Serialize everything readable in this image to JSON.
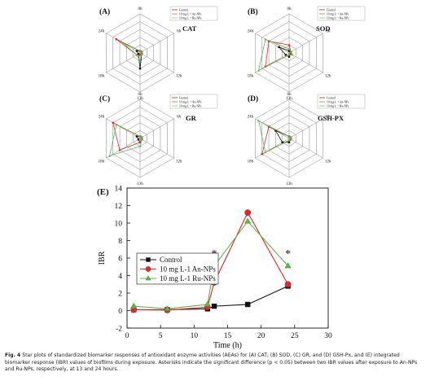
{
  "caption": {
    "lead": "Fig. 4",
    "text": "Star plots of standardized biomarker responses of antioxidant enzyme activities (AEAs) for (A) CAT, (B) SOD, (C) GR, and (D) GSH-Px, and (E) integrated biomarker response (IBR) values of biofilms during exposure. Asterisks indicate the significant difference (p < 0.05) between two IBR values after exposure to An-NPs and Ru-NPs, respectively, at 13 and 24 hours."
  },
  "colors": {
    "control": "#111111",
    "an": "#e8262a",
    "ru": "#58b947"
  },
  "radar_axes": [
    "0h",
    "6h",
    "12h",
    "13h",
    "18h",
    "24h"
  ],
  "radar_legend": [
    "Control",
    "10 mg L⁻¹ An-NPs",
    "10 mg L⁻¹ Ru-NPs"
  ],
  "chart_data": [
    {
      "type": "radar",
      "panel_label": "(A)",
      "title": "CAT",
      "axes": [
        "0h",
        "6h",
        "12h",
        "13h",
        "18h",
        "24h"
      ],
      "series": [
        {
          "name": "Control",
          "values": [
            0.05,
            0.05,
            0.05,
            0.4,
            0.05,
            0.1
          ]
        },
        {
          "name": "10 mg L⁻¹ An-NPs",
          "values": [
            0.05,
            0.05,
            0.05,
            0.05,
            0.1,
            0.7
          ]
        },
        {
          "name": "10 mg L⁻¹ Ru-NPs",
          "values": [
            0.05,
            0.05,
            0.05,
            0.2,
            0.1,
            0.5
          ]
        }
      ]
    },
    {
      "type": "radar",
      "panel_label": "(B)",
      "title": "SOD",
      "axes": [
        "0h",
        "6h",
        "12h",
        "13h",
        "18h",
        "24h"
      ],
      "series": [
        {
          "name": "Control",
          "values": [
            0.05,
            0.05,
            0.05,
            0.1,
            0.1,
            0.3
          ]
        },
        {
          "name": "10 mg L⁻¹ An-NPs",
          "values": [
            0.2,
            0.05,
            0.05,
            0.05,
            0.7,
            0.6
          ]
        },
        {
          "name": "10 mg L⁻¹ Ru-NPs",
          "values": [
            0.1,
            0.05,
            0.1,
            0.05,
            0.9,
            0.7
          ]
        }
      ]
    },
    {
      "type": "radar",
      "panel_label": "(C)",
      "title": "GR",
      "axes": [
        "0h",
        "6h",
        "12h",
        "13h",
        "18h",
        "24h"
      ],
      "series": [
        {
          "name": "Control",
          "values": [
            0.05,
            0.05,
            0.05,
            0.1,
            0.05,
            0.1
          ]
        },
        {
          "name": "10 mg L⁻¹ An-NPs",
          "values": [
            0.05,
            0.05,
            0.05,
            0.1,
            0.6,
            0.8
          ]
        },
        {
          "name": "10 mg L⁻¹ Ru-NPs",
          "values": [
            0.05,
            0.05,
            0.05,
            0.2,
            0.9,
            0.7
          ]
        }
      ]
    },
    {
      "type": "radar",
      "panel_label": "(D)",
      "title": "GSH-PX",
      "axes": [
        "0h",
        "6h",
        "12h",
        "13h",
        "18h",
        "24h"
      ],
      "series": [
        {
          "name": "Control",
          "values": [
            0.05,
            0.05,
            0.05,
            0.1,
            0.2,
            0.4
          ]
        },
        {
          "name": "10 mg L⁻¹ An-NPs",
          "values": [
            0.05,
            0.05,
            0.05,
            0.05,
            0.8,
            0.6
          ]
        },
        {
          "name": "10 mg L⁻¹ Ru-NPs",
          "values": [
            0.05,
            0.05,
            0.05,
            0.05,
            0.7,
            0.9
          ]
        }
      ]
    },
    {
      "type": "line",
      "panel_label": "(E)",
      "xlabel": "Time (h)",
      "ylabel": "IBR",
      "xlim": [
        0,
        30
      ],
      "ylim": [
        -2,
        14
      ],
      "xticks": [
        0,
        5,
        10,
        15,
        20,
        25,
        30
      ],
      "yticks": [
        -2,
        0,
        2,
        4,
        6,
        8,
        10,
        12,
        14
      ],
      "x": [
        1,
        6,
        12,
        13,
        18,
        24
      ],
      "series": [
        {
          "name": "Control",
          "marker": "square",
          "values": [
            0.1,
            0.1,
            0.2,
            0.5,
            0.7,
            2.8
          ]
        },
        {
          "name": "10 mg L-1 An-NPs",
          "marker": "circle",
          "values": [
            0.1,
            0.05,
            0.4,
            3.2,
            11.2,
            3.0
          ]
        },
        {
          "name": "10 mg L-1 Ru-NPs",
          "marker": "triangle",
          "values": [
            0.5,
            0.2,
            0.7,
            5.1,
            10.2,
            5.1
          ]
        }
      ],
      "annotations": [
        {
          "x": 13,
          "y": 6.1,
          "text": "*"
        },
        {
          "x": 24,
          "y": 6.1,
          "text": "*"
        }
      ],
      "legend_position": "center-left"
    }
  ]
}
